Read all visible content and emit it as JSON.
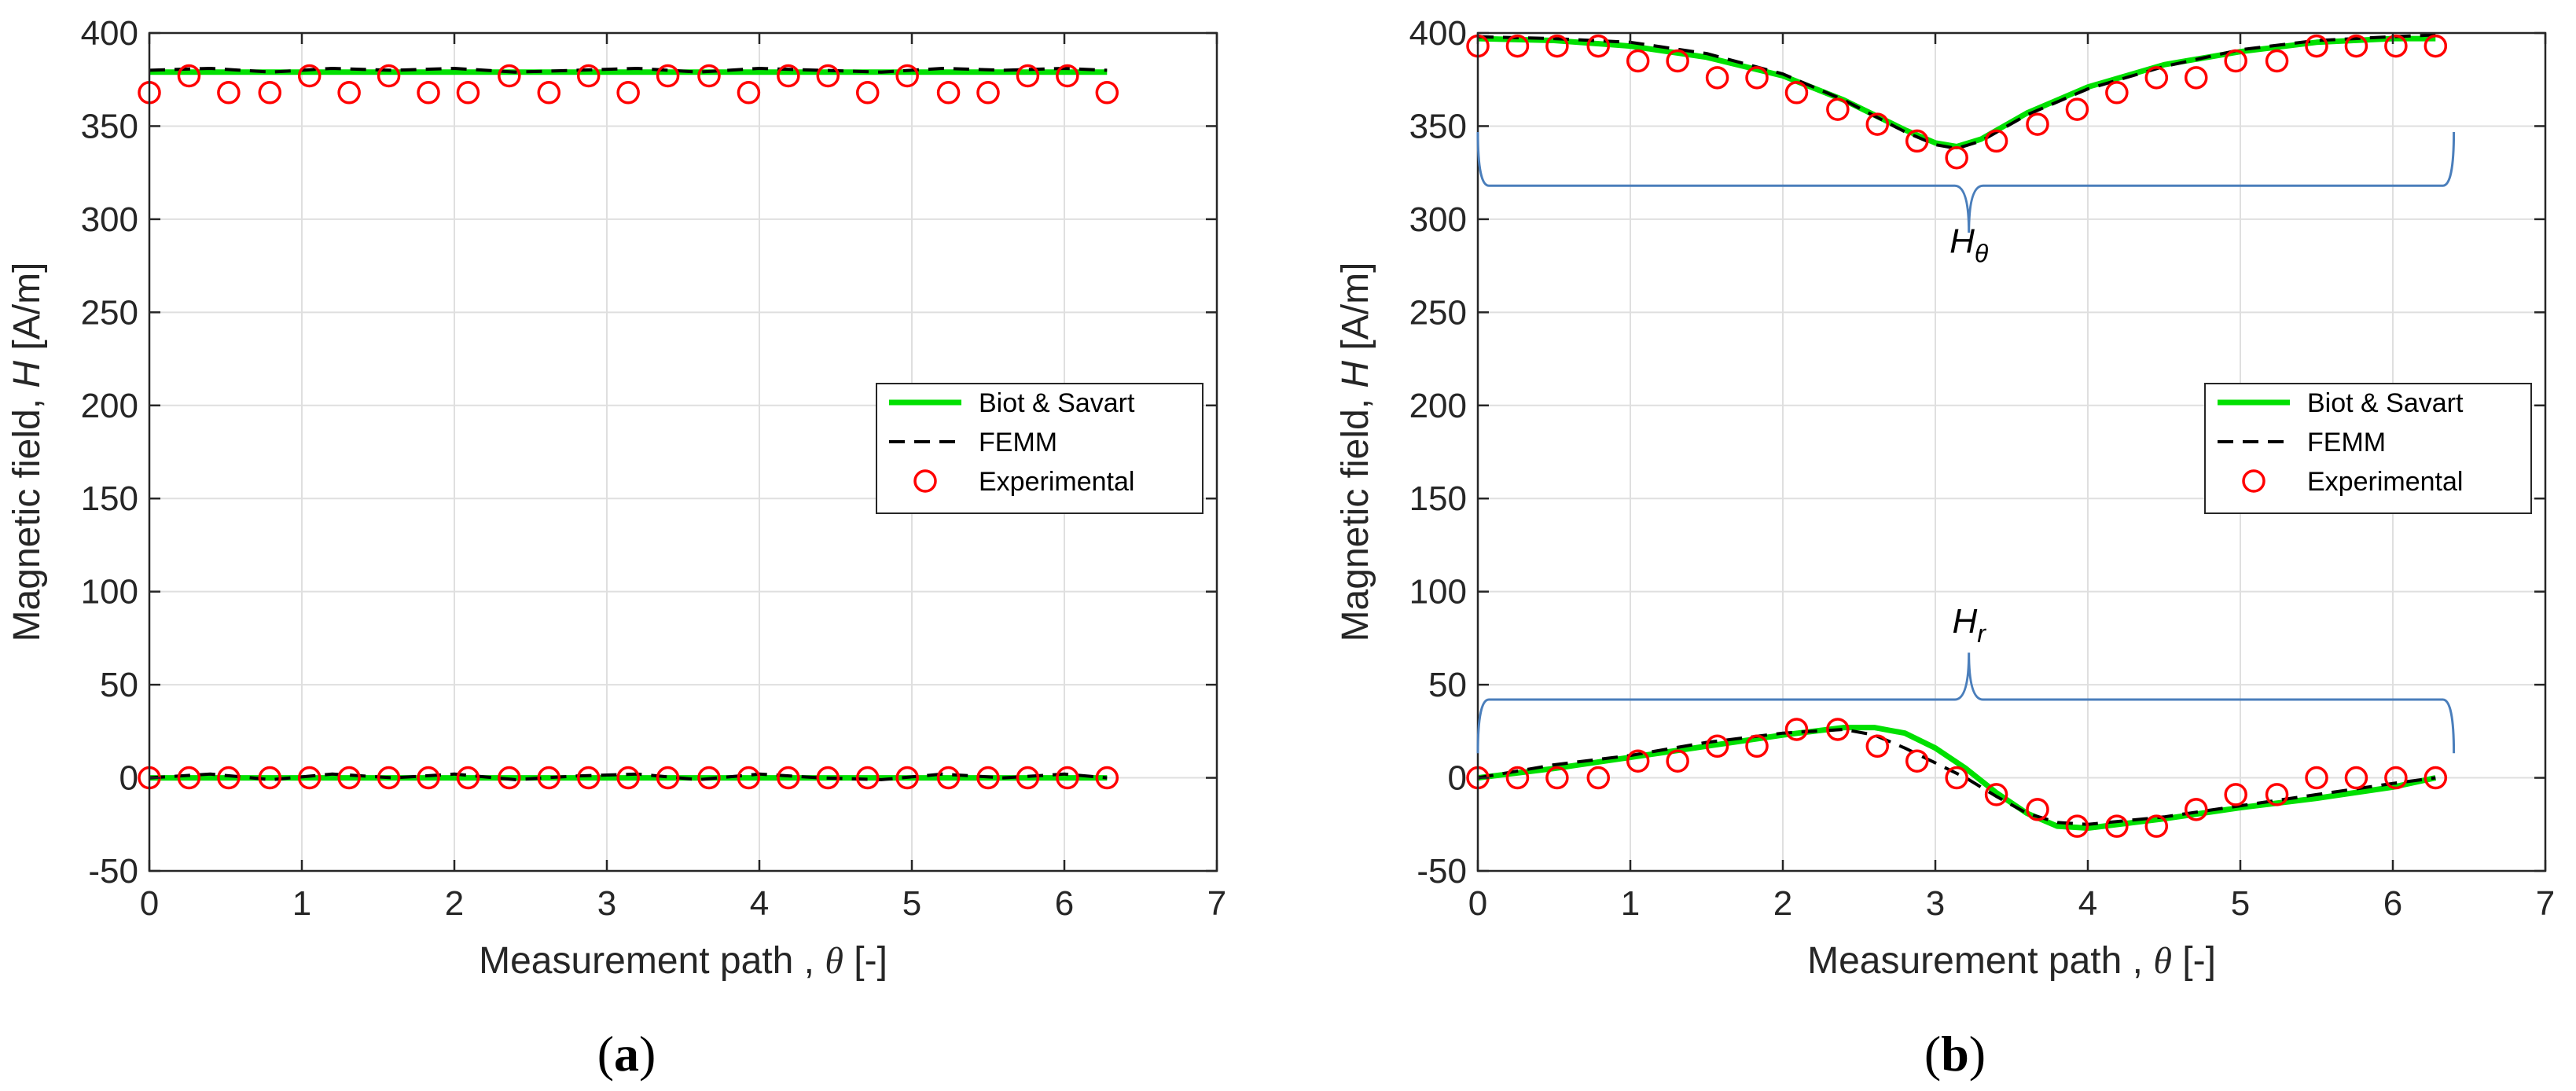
{
  "colors": {
    "biot_savart": "#00e000",
    "femm": "#000000",
    "experimental": "#ff0000",
    "brace": "#4a7ebb",
    "grid": "#dfdfdf",
    "axis": "#262626"
  },
  "chart_data": [
    {
      "id": "a",
      "type": "line",
      "subfigure_label": "(a)",
      "xlabel_main": "Measurement path , ",
      "xlabel_symbol": "θ",
      "xlabel_unit": " [-]",
      "ylabel_main": "Magnetic field, ",
      "ylabel_symbol": "H",
      "ylabel_unit": " [A/m]",
      "xlim": [
        0,
        7
      ],
      "ylim": [
        -50,
        400
      ],
      "xticks": [
        0,
        1,
        2,
        3,
        4,
        5,
        6,
        7
      ],
      "yticks": [
        -50,
        0,
        50,
        100,
        150,
        200,
        250,
        300,
        350,
        400
      ],
      "grid": true,
      "legend_position": "center-right",
      "legend": [
        "Biot & Savart",
        "FEMM",
        "Experimental"
      ],
      "annotations": [],
      "series": [
        {
          "name": "Biot & Savart",
          "style": "solid",
          "x": [
            0,
            6.28
          ],
          "y": [
            379,
            379
          ]
        },
        {
          "name": "FEMM",
          "style": "dashed",
          "x": [
            0,
            0.4,
            0.8,
            1.2,
            1.6,
            2.0,
            2.4,
            2.8,
            3.2,
            3.6,
            4.0,
            4.4,
            4.8,
            5.2,
            5.6,
            6.0,
            6.28
          ],
          "y": [
            380,
            381,
            379,
            381,
            380,
            381,
            379,
            380,
            381,
            379,
            381,
            380,
            379,
            381,
            380,
            381,
            380
          ]
        },
        {
          "name": "Biot & Savart",
          "style": "solid",
          "x": [
            0,
            6.28
          ],
          "y": [
            0,
            0
          ]
        },
        {
          "name": "FEMM",
          "style": "dashed",
          "x": [
            0,
            0.4,
            0.8,
            1.2,
            1.6,
            2.0,
            2.4,
            2.8,
            3.2,
            3.6,
            4.0,
            4.4,
            4.8,
            5.2,
            5.6,
            6.0,
            6.28
          ],
          "y": [
            0,
            2,
            -1,
            2,
            0,
            2,
            -1,
            1,
            2,
            -1,
            2,
            0,
            -1,
            2,
            0,
            2,
            0
          ]
        },
        {
          "name": "Experimental",
          "style": "markers",
          "x": [
            0,
            0.26,
            0.52,
            0.79,
            1.05,
            1.31,
            1.57,
            1.83,
            2.09,
            2.36,
            2.62,
            2.88,
            3.14,
            3.4,
            3.67,
            3.93,
            4.19,
            4.45,
            4.71,
            4.97,
            5.24,
            5.5,
            5.76,
            6.02,
            6.28
          ],
          "y": [
            368,
            377,
            368,
            368,
            377,
            368,
            377,
            368,
            368,
            377,
            368,
            377,
            368,
            377,
            377,
            368,
            377,
            377,
            368,
            377,
            368,
            368,
            377,
            377,
            368
          ]
        },
        {
          "name": "Experimental",
          "style": "markers",
          "x": [
            0,
            0.26,
            0.52,
            0.79,
            1.05,
            1.31,
            1.57,
            1.83,
            2.09,
            2.36,
            2.62,
            2.88,
            3.14,
            3.4,
            3.67,
            3.93,
            4.19,
            4.45,
            4.71,
            4.97,
            5.24,
            5.5,
            5.76,
            6.02,
            6.28
          ],
          "y": [
            0,
            0,
            0,
            0,
            0,
            0,
            0,
            0,
            0,
            0,
            0,
            0,
            0,
            0,
            0,
            0,
            0,
            0,
            0,
            0,
            0,
            0,
            0,
            0,
            0
          ]
        }
      ]
    },
    {
      "id": "b",
      "type": "line",
      "subfigure_label": "(b)",
      "xlabel_main": "Measurement path , ",
      "xlabel_symbol": "θ",
      "xlabel_unit": " [-]",
      "ylabel_main": "Magnetic field, ",
      "ylabel_symbol": "H",
      "ylabel_unit": " [A/m]",
      "xlim": [
        0,
        7
      ],
      "ylim": [
        -50,
        400
      ],
      "xticks": [
        0,
        1,
        2,
        3,
        4,
        5,
        6,
        7
      ],
      "yticks": [
        -50,
        0,
        50,
        100,
        150,
        200,
        250,
        300,
        350,
        400
      ],
      "grid": true,
      "legend_position": "center-right",
      "legend": [
        "Biot & Savart",
        "FEMM",
        "Experimental"
      ],
      "annotations": [
        {
          "base": "H",
          "sub": "θ",
          "x": 3.22,
          "y": 282,
          "brace": {
            "x1": 0,
            "x2": 6.4,
            "y": 318,
            "dir": "up",
            "height": 18
          }
        },
        {
          "base": "H",
          "sub": "r",
          "x": 3.22,
          "y": 78,
          "brace": {
            "x1": 0,
            "x2": 6.4,
            "y": 42,
            "dir": "down",
            "height": 18
          }
        }
      ],
      "series": [
        {
          "name": "Biot & Savart",
          "style": "solid",
          "x": [
            0,
            0.5,
            1.0,
            1.5,
            2.0,
            2.4,
            2.8,
            3.0,
            3.14,
            3.3,
            3.6,
            4.0,
            4.5,
            5.0,
            5.5,
            6.0,
            6.28
          ],
          "y": [
            397,
            396,
            393,
            387,
            377,
            364,
            348,
            341,
            339,
            343,
            357,
            371,
            383,
            390,
            395,
            397,
            397
          ]
        },
        {
          "name": "FEMM",
          "style": "dashed",
          "x": [
            0,
            0.5,
            1.0,
            1.5,
            2.0,
            2.4,
            2.8,
            3.0,
            3.14,
            3.3,
            3.6,
            4.0,
            4.5,
            5.0,
            5.5,
            6.0,
            6.28
          ],
          "y": [
            398,
            397,
            395,
            389,
            378,
            364,
            347,
            340,
            338,
            342,
            356,
            370,
            382,
            391,
            396,
            398,
            399
          ]
        },
        {
          "name": "Biot & Savart",
          "style": "solid",
          "x": [
            0,
            0.5,
            1.0,
            1.5,
            2.0,
            2.4,
            2.6,
            2.8,
            3.0,
            3.2,
            3.4,
            3.6,
            3.8,
            4.0,
            4.5,
            5.0,
            5.5,
            6.0,
            6.28
          ],
          "y": [
            0,
            5,
            11,
            17,
            23,
            27,
            27,
            24,
            16,
            5,
            -8,
            -19,
            -26,
            -27,
            -22,
            -16,
            -11,
            -5,
            0
          ]
        },
        {
          "name": "FEMM",
          "style": "dashed",
          "x": [
            0,
            0.5,
            1.0,
            1.5,
            2.0,
            2.4,
            2.6,
            2.8,
            3.0,
            3.2,
            3.4,
            3.6,
            3.8,
            4.0,
            4.5,
            5.0,
            5.5,
            6.0,
            6.28
          ],
          "y": [
            0,
            7,
            12,
            19,
            24,
            26,
            23,
            16,
            8,
            0,
            -10,
            -19,
            -24,
            -25,
            -21,
            -15,
            -9,
            -3,
            0
          ]
        },
        {
          "name": "Experimental",
          "style": "markers",
          "x": [
            0,
            0.26,
            0.52,
            0.79,
            1.05,
            1.31,
            1.57,
            1.83,
            2.09,
            2.36,
            2.62,
            2.88,
            3.14,
            3.4,
            3.67,
            3.93,
            4.19,
            4.45,
            4.71,
            4.97,
            5.24,
            5.5,
            5.76,
            6.02,
            6.28
          ],
          "y": [
            393,
            393,
            393,
            393,
            385,
            385,
            376,
            376,
            368,
            359,
            351,
            342,
            333,
            342,
            351,
            359,
            368,
            376,
            376,
            385,
            385,
            393,
            393,
            393,
            393
          ]
        },
        {
          "name": "Experimental",
          "style": "markers",
          "x": [
            0,
            0.26,
            0.52,
            0.79,
            1.05,
            1.31,
            1.57,
            1.83,
            2.09,
            2.36,
            2.62,
            2.88,
            3.14,
            3.4,
            3.67,
            3.93,
            4.19,
            4.45,
            4.71,
            4.97,
            5.24,
            5.5,
            5.76,
            6.02,
            6.28
          ],
          "y": [
            0,
            0,
            0,
            0,
            9,
            9,
            17,
            17,
            26,
            26,
            17,
            9,
            0,
            -9,
            -17,
            -26,
            -26,
            -26,
            -17,
            -9,
            -9,
            0,
            0,
            0,
            0
          ]
        }
      ]
    }
  ]
}
